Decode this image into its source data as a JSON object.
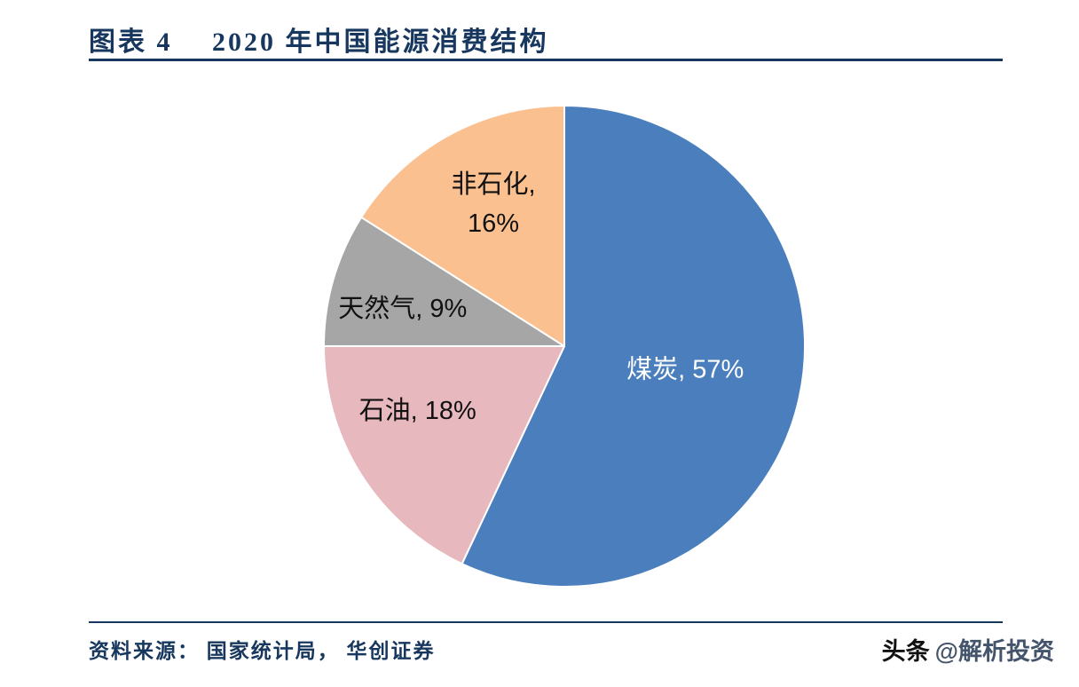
{
  "page": {
    "background": "#ffffff",
    "accent": "#17375e"
  },
  "header": {
    "chart_label": "图表 4",
    "title": "2020 年中国能源消费结构"
  },
  "chart_data": {
    "type": "pie",
    "title": "2020 年中国能源消费结构",
    "unit": "%",
    "start_angle_deg": 0,
    "direction": "clockwise",
    "legend": "none",
    "slices": [
      {
        "name": "煤炭",
        "value": 57,
        "label_lines": [
          "煤炭, 57%"
        ],
        "color": "#4a7ebc",
        "label_color": "#ffffff"
      },
      {
        "name": "石油",
        "value": 18,
        "label_lines": [
          "石油, 18%"
        ],
        "color": "#e7b8bd",
        "label_color": "#111111"
      },
      {
        "name": "天然气",
        "value": 9,
        "label_lines": [
          "天然气, 9%"
        ],
        "color": "#a6a6a6",
        "label_color": "#111111"
      },
      {
        "name": "非石化",
        "value": 16,
        "label_lines": [
          "非石化,",
          "16%"
        ],
        "color": "#fbc08f",
        "label_color": "#111111"
      }
    ]
  },
  "footer": {
    "source": "资料来源： 国家统计局， 华创证券"
  },
  "watermark": {
    "prefix": "头条",
    "handle": "@解析投资",
    "handle_color": "#44546a"
  }
}
